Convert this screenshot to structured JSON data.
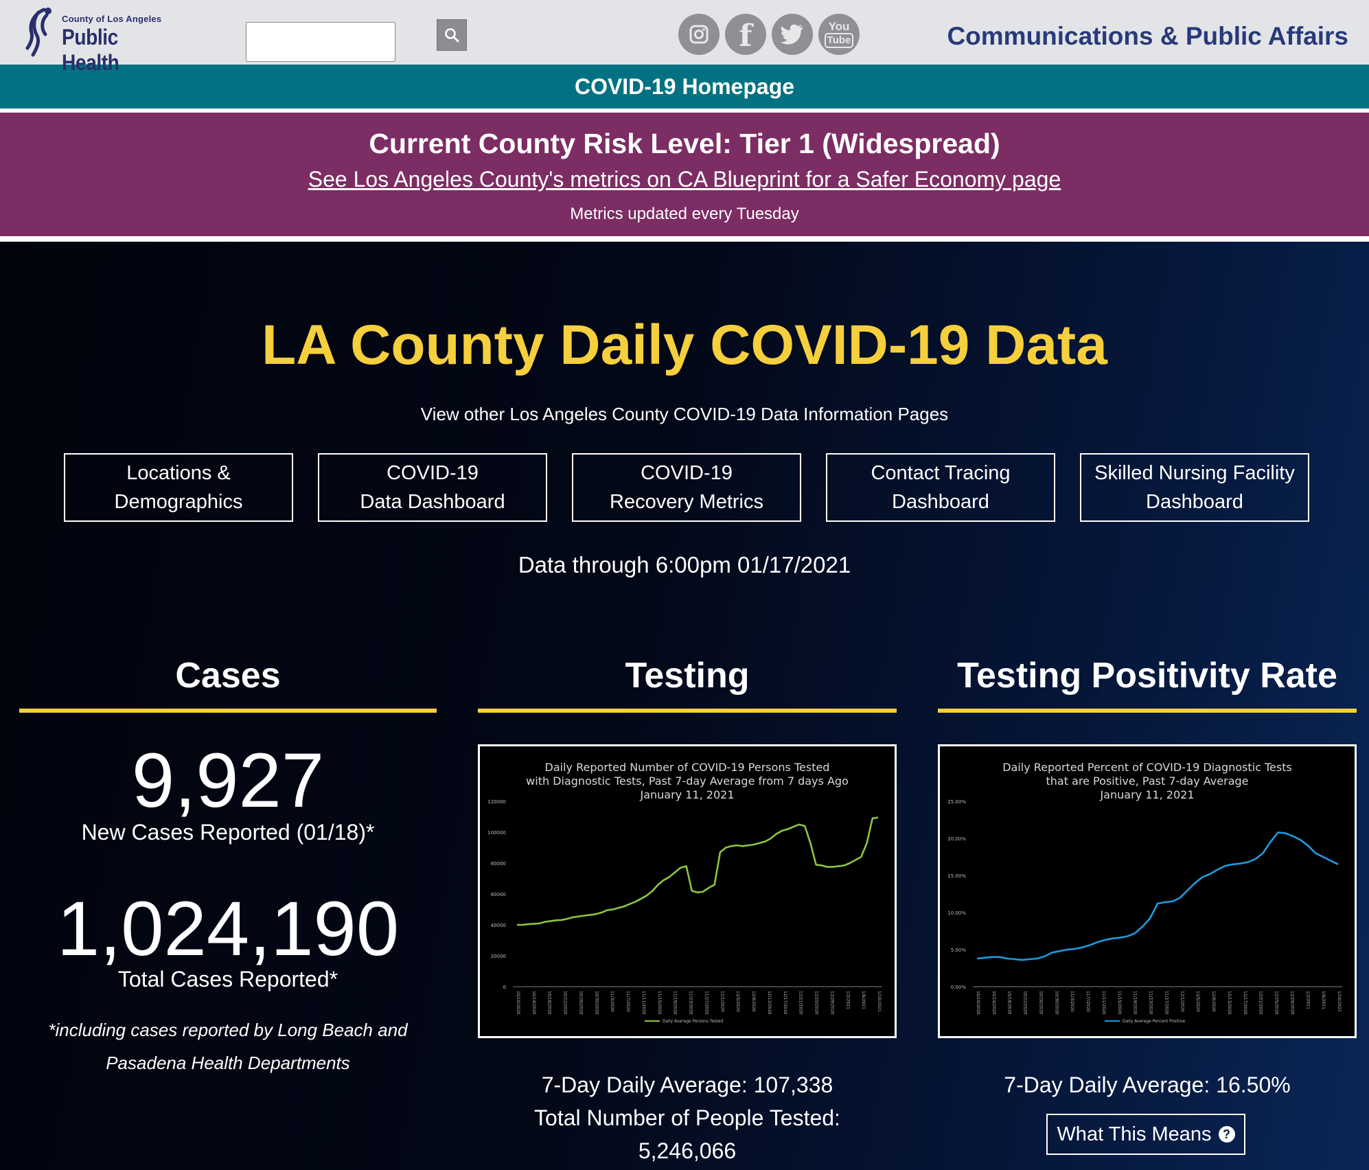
{
  "header": {
    "logo_small": "County of Los Angeles",
    "logo_big": "Public Health",
    "search": {
      "value": "",
      "placeholder": ""
    },
    "socials": [
      {
        "name": "instagram-icon"
      },
      {
        "name": "facebook-icon",
        "glyph": "f"
      },
      {
        "name": "twitter-icon"
      },
      {
        "name": "youtube-icon",
        "glyph_top": "You",
        "glyph_bottom": "Tube"
      }
    ],
    "dept": "Communications & Public Affairs"
  },
  "banner": {
    "homepage": "COVID-19 Homepage"
  },
  "risk": {
    "title": "Current County Risk Level: Tier 1 (Widespread)",
    "link": "See Los Angeles County's metrics on CA Blueprint for a Safer Economy page",
    "note": "Metrics updated every Tuesday"
  },
  "main": {
    "title": "LA County Daily COVID-19 Data",
    "subtitle": "View other Los Angeles County COVID-19 Data Information Pages",
    "nav": [
      "Locations &\nDemographics",
      "COVID-19\nData Dashboard",
      "COVID-19\nRecovery Metrics",
      "Contact Tracing\nDashboard",
      "Skilled Nursing Facility\nDashboard"
    ],
    "data_through": "Data through 6:00pm 01/17/2021"
  },
  "cases": {
    "heading": "Cases",
    "new_cases": "9,927",
    "new_label": "New Cases Reported (01/18)*",
    "total_cases": "1,024,190",
    "total_label": "Total Cases Reported*",
    "footnote_1": "*including cases reported by Long Beach and",
    "footnote_2": "Pasadena Health Departments"
  },
  "testing": {
    "heading": "Testing",
    "avg": "7-Day Daily Average: 107,338",
    "total_label": "Total Number of People Tested:",
    "total": "5,246,066"
  },
  "positivity": {
    "heading": "Testing Positivity Rate",
    "avg": "7-Day Daily Average: 16.50%",
    "button": "What This Means"
  },
  "colors": {
    "accent": "#f6cf3d",
    "teal": "#027282",
    "purple": "#7c2d63",
    "testing_line": "#8dc63f",
    "positivity_line": "#1e9be0"
  },
  "chart_data": [
    {
      "type": "line",
      "title": "Daily Reported Number of COVID-19 Persons Tested with Diagnostic Tests, Past 7-day Average from 7 days Ago January 11, 2021",
      "title_lines": [
        "Daily Reported Number of COVID-19 Persons Tested",
        "with Diagnostic Tests, Past 7-day Average from 7 days Ago",
        "January 11, 2021"
      ],
      "legend": "Daily Average Persons Tested",
      "ylim": [
        0,
        120000
      ],
      "y_ticks": [
        "0",
        "20000",
        "40000",
        "60000",
        "80000",
        "100000",
        "120000"
      ],
      "x_ticks": [
        "10/10/2020",
        "10/14/2020",
        "10/18/2020",
        "10/22/2020",
        "10/26/2020",
        "10/30/2020",
        "11/3/2020",
        "11/7/2020",
        "11/11/2020",
        "11/15/2020",
        "11/19/2020",
        "11/23/2020",
        "11/27/2020",
        "12/1/2020",
        "12/5/2020",
        "12/9/2020",
        "12/13/2020",
        "12/17/2020",
        "12/21/2020",
        "12/25/2020",
        "12/29/2020",
        "1/2/2021",
        "1/6/2021",
        "1/10/2021"
      ],
      "values": [
        40000,
        40000,
        40500,
        40700,
        41000,
        42000,
        42500,
        43000,
        43200,
        44000,
        45000,
        45500,
        46000,
        46500,
        47000,
        48000,
        49500,
        50000,
        51000,
        52000,
        53500,
        55000,
        57000,
        59000,
        62000,
        66000,
        69000,
        71000,
        74000,
        77000,
        78000,
        62000,
        61000,
        61500,
        64000,
        66000,
        87000,
        90000,
        91000,
        91500,
        91000,
        91500,
        92000,
        93000,
        94000,
        96000,
        99000,
        101000,
        102000,
        103500,
        105000,
        104000,
        93000,
        79000,
        78500,
        77500,
        77500,
        78000,
        78500,
        80000,
        82000,
        84000,
        93000,
        109000,
        109500
      ]
    },
    {
      "type": "line",
      "title": "Daily Reported Percent of COVID-19 Diagnostic Tests that are Positive, Past 7-day Average January 11, 2021",
      "title_lines": [
        "Daily Reported Percent of COVID-19 Diagnostic Tests",
        "that are Positive, Past 7-day Average",
        "January 11, 2021"
      ],
      "legend": "Daily Average Percent Positive",
      "ylim": [
        0,
        25
      ],
      "y_ticks": [
        "0.00%",
        "5.00%",
        "10.00%",
        "15.00%",
        "20.00%",
        "25.00%"
      ],
      "x_ticks": [
        "10/10/2020",
        "10/14/2020",
        "10/18/2020",
        "10/22/2020",
        "10/26/2020",
        "10/30/2020",
        "11/3/2020",
        "11/7/2020",
        "11/11/2020",
        "11/15/2020",
        "11/19/2020",
        "11/23/2020",
        "11/27/2020",
        "12/1/2020",
        "12/5/2020",
        "12/9/2020",
        "12/13/2020",
        "12/17/2020",
        "12/21/2020",
        "12/25/2020",
        "12/29/2020",
        "1/2/2021",
        "1/6/2021",
        "1/10/2021"
      ],
      "values": [
        3.8,
        3.9,
        4.0,
        4.0,
        3.8,
        3.7,
        3.6,
        3.7,
        3.8,
        4.1,
        4.6,
        4.8,
        5.0,
        5.1,
        5.3,
        5.6,
        6.0,
        6.3,
        6.5,
        6.6,
        6.8,
        7.2,
        8.1,
        9.2,
        11.2,
        11.4,
        11.5,
        12.0,
        13.0,
        14.0,
        14.8,
        15.2,
        15.8,
        16.3,
        16.5,
        16.6,
        16.8,
        17.2,
        18.0,
        19.5,
        20.8,
        20.7,
        20.3,
        19.8,
        19.0,
        18.0,
        17.5,
        17.0,
        16.5
      ]
    }
  ]
}
